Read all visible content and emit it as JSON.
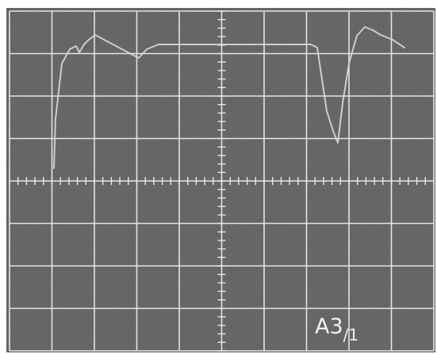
{
  "screen": {
    "label": {
      "main": "A3",
      "sub": "/1"
    }
  }
}
